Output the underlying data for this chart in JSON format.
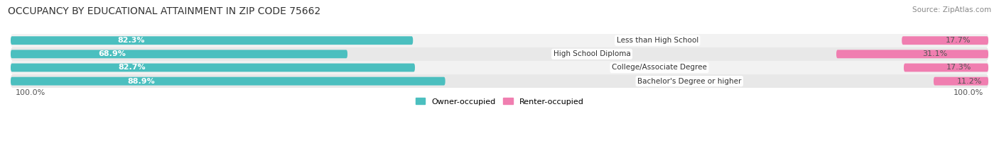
{
  "title": "OCCUPANCY BY EDUCATIONAL ATTAINMENT IN ZIP CODE 75662",
  "source": "Source: ZipAtlas.com",
  "categories": [
    "Less than High School",
    "High School Diploma",
    "College/Associate Degree",
    "Bachelor's Degree or higher"
  ],
  "owner_pct": [
    82.3,
    68.9,
    82.7,
    88.9
  ],
  "renter_pct": [
    17.7,
    31.1,
    17.3,
    11.2
  ],
  "owner_color": "#4BBFBF",
  "renter_color": "#F07EB0",
  "bg_color": "#FFFFFF",
  "row_bg_even": "#F2F2F2",
  "row_bg_odd": "#E8E8E8",
  "title_fontsize": 10,
  "label_fontsize": 8,
  "tick_fontsize": 8,
  "source_fontsize": 7.5,
  "legend_fontsize": 8,
  "x_left_label": "100.0%",
  "x_right_label": "100.0%",
  "bar_height": 0.62,
  "total_width": 100.0
}
